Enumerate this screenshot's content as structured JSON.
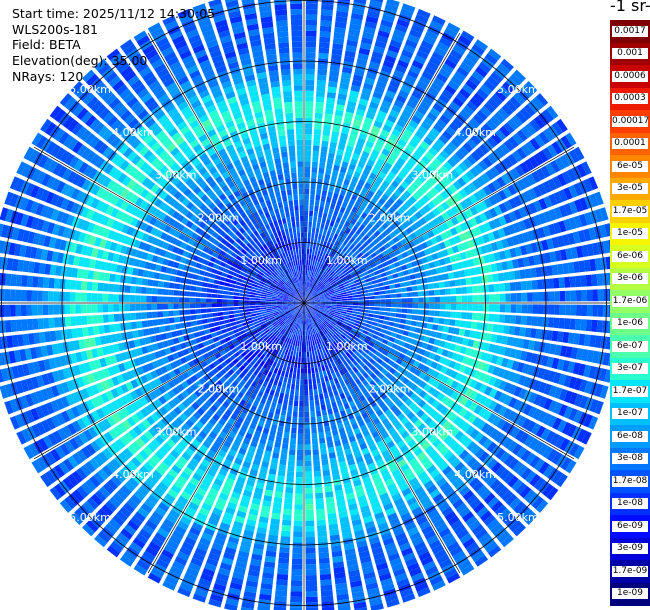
{
  "header": {
    "start_time": "Start time: 2025/11/12 14:30:05",
    "device": "WLS200s-181",
    "field": "Field: BETA",
    "elevation": "Elevation(deg): 35.00",
    "nrays": "NRays: 120"
  },
  "colorbar": {
    "unit_label": "-1 sr-",
    "labels": [
      "0.0017",
      "0.001",
      "0.0006",
      "0.0003",
      "0.00017",
      "0.0001",
      "6e-05",
      "3e-05",
      "1.7e-05",
      "1e-05",
      "6e-06",
      "3e-06",
      "1.7e-06",
      "1e-06",
      "6e-07",
      "3e-07",
      "1.7e-07",
      "1e-07",
      "6e-08",
      "3e-08",
      "1.7e-08",
      "1e-08",
      "6e-09",
      "3e-09",
      "1.7e-09",
      "1e-09"
    ],
    "colors": [
      "#7f0000",
      "#a00000",
      "#c80000",
      "#ee1b00",
      "#ff3d00",
      "#ff6200",
      "#ff8600",
      "#ffaa00",
      "#ffd000",
      "#f7f400",
      "#d7ff1f",
      "#b4ff42",
      "#91ff66",
      "#6dff8a",
      "#4affad",
      "#27ffd0",
      "#08e4f8",
      "#00c0ff",
      "#009cff",
      "#0078ff",
      "#0054ff",
      "#0030ff",
      "#000cff",
      "#0000da",
      "#0000a8",
      "#00007f"
    ]
  },
  "chart_data": {
    "type": "ppi",
    "field": "BETA",
    "elevation_deg": 35.0,
    "nrays": 120,
    "range_rings_km": [
      1,
      2,
      3,
      4,
      5
    ],
    "range_labels": [
      "1.00km",
      "2.00km",
      "3.00km",
      "4.00km",
      "5.00km"
    ],
    "max_range_km": 5.0,
    "azimuth_spokes_deg": [
      0,
      30,
      60,
      90,
      120,
      150,
      180,
      210,
      240,
      270,
      300,
      330
    ],
    "value_profile_by_range": [
      {
        "range_km": 0.0,
        "value": 1e-08
      },
      {
        "range_km": 1.0,
        "value": 1e-08
      },
      {
        "range_km": 1.5,
        "value": 2e-08
      },
      {
        "range_km": 2.0,
        "value": 3e-08
      },
      {
        "range_km": 2.5,
        "value": 6e-08
      },
      {
        "range_km": 3.0,
        "value": 1.7e-07
      },
      {
        "range_km": 3.3,
        "value": 3e-07
      },
      {
        "range_km": 3.7,
        "value": 1e-07
      },
      {
        "range_km": 4.0,
        "value": 3e-08
      },
      {
        "range_km": 4.5,
        "value": 2e-08
      },
      {
        "range_km": 5.0,
        "value": 2e-08
      }
    ]
  }
}
